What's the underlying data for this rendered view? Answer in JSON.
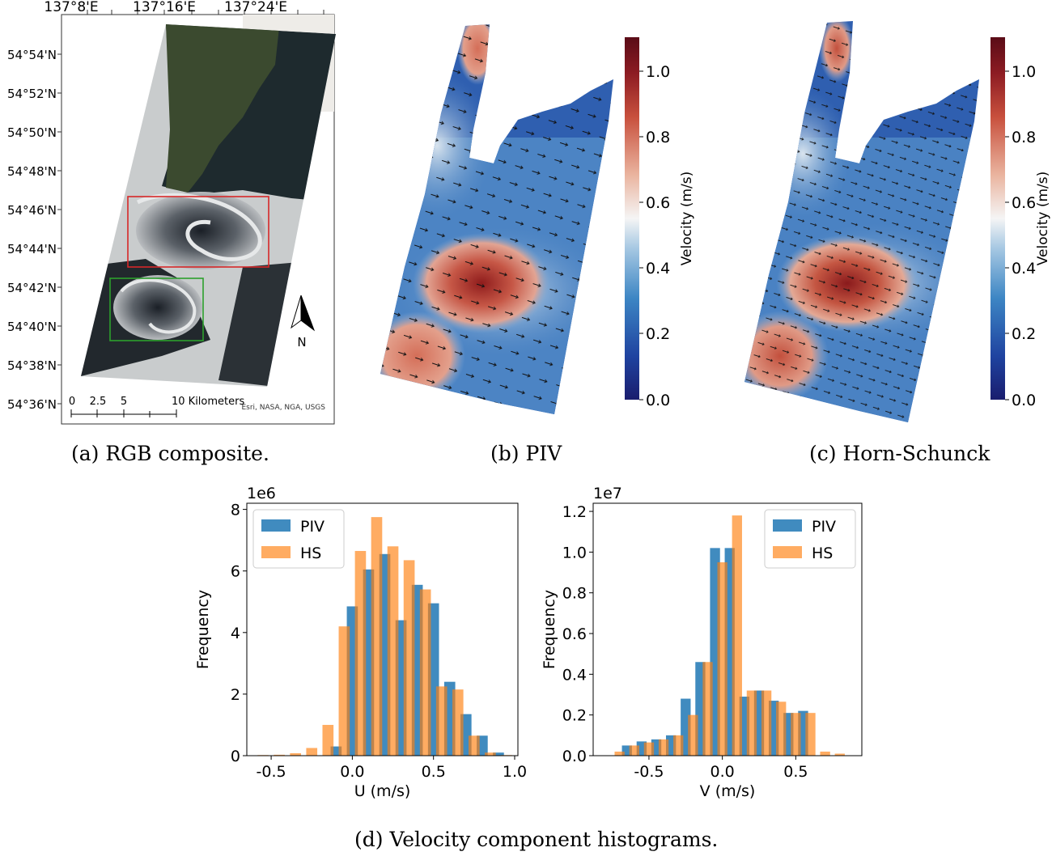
{
  "captions": {
    "a": "(a) RGB composite.",
    "b": "(b) PIV",
    "c": "(c) Horn-Schunck",
    "d": "(d) Velocity component histograms."
  },
  "map_a": {
    "lon_ticks": [
      "137°8'E",
      "137°16'E",
      "137°24'E"
    ],
    "lat_ticks": [
      "54°54'N",
      "54°52'N",
      "54°50'N",
      "54°48'N",
      "54°46'N",
      "54°44'N",
      "54°42'N",
      "54°40'N",
      "54°38'N",
      "54°36'N"
    ],
    "scale_labels": [
      "0",
      "2.5",
      "5",
      "10 Kilometers"
    ],
    "attribution": "Esri, NASA, NGA, USGS",
    "north_label": "N"
  },
  "colorbar": {
    "label": "Velocity (m/s)",
    "ticks": [
      "0.0",
      "0.2",
      "0.4",
      "0.6",
      "0.8",
      "1.0"
    ],
    "colors": {
      "low": "#1a1d6e",
      "mid": "#f5f5f5",
      "high": "#5a0c17"
    }
  },
  "chart_data": [
    {
      "type": "bar",
      "xlabel": "U (m/s)",
      "ylabel": "Frequency",
      "offset_text": "1e6",
      "xlim": [
        -0.65,
        1.02
      ],
      "ylim": [
        0,
        8.2
      ],
      "xticks": [
        "-0.5",
        "0.0",
        "0.5",
        "1.0"
      ],
      "xtick_values": [
        -0.5,
        0.0,
        0.5,
        1.0
      ],
      "yticks": [
        "0",
        "2",
        "4",
        "6",
        "8"
      ],
      "ytick_values": [
        0,
        2,
        4,
        6,
        8
      ],
      "legend_position": "upper-left",
      "series": [
        {
          "name": "PIV",
          "color": "#1f77b4",
          "x": [
            -0.5,
            -0.4,
            -0.3,
            -0.2,
            -0.1,
            0.0,
            0.1,
            0.2,
            0.3,
            0.4,
            0.5,
            0.6,
            0.7,
            0.8,
            0.9
          ],
          "values": [
            0.0,
            0.0,
            0.0,
            0.0,
            0.3,
            4.85,
            6.05,
            6.55,
            4.4,
            5.55,
            4.95,
            2.4,
            1.35,
            0.65,
            0.1
          ]
        },
        {
          "name": "HS",
          "color": "#ff7f0e",
          "x": [
            -0.55,
            -0.45,
            -0.35,
            -0.25,
            -0.15,
            -0.05,
            0.05,
            0.15,
            0.25,
            0.35,
            0.45,
            0.55,
            0.65,
            0.75,
            0.85,
            0.95
          ],
          "values": [
            0.02,
            0.03,
            0.08,
            0.25,
            1.0,
            4.2,
            6.65,
            7.75,
            6.8,
            6.35,
            5.4,
            2.25,
            2.15,
            0.65,
            0.1,
            0.02
          ]
        }
      ]
    },
    {
      "type": "bar",
      "xlabel": "V (m/s)",
      "ylabel": "Frequency",
      "offset_text": "1e7",
      "xlim": [
        -0.88,
        0.95
      ],
      "ylim": [
        0,
        1.24
      ],
      "xticks": [
        "-0.5",
        "0.0",
        "0.5"
      ],
      "xtick_values": [
        -0.5,
        0.0,
        0.5
      ],
      "yticks": [
        "0.0",
        "0.2",
        "0.4",
        "0.6",
        "0.8",
        "1.0",
        "1.2"
      ],
      "ytick_values": [
        0,
        0.2,
        0.4,
        0.6,
        0.8,
        1.0,
        1.2
      ],
      "legend_position": "upper-right",
      "series": [
        {
          "name": "PIV",
          "color": "#1f77b4",
          "x": [
            -0.65,
            -0.55,
            -0.45,
            -0.35,
            -0.25,
            -0.15,
            -0.05,
            0.05,
            0.15,
            0.25,
            0.35,
            0.45,
            0.55,
            0.65
          ],
          "values": [
            0.05,
            0.07,
            0.08,
            0.1,
            0.28,
            0.46,
            1.02,
            1.02,
            0.29,
            0.32,
            0.27,
            0.21,
            0.22,
            0.0
          ]
        },
        {
          "name": "HS",
          "color": "#ff7f0e",
          "x": [
            -0.7,
            -0.6,
            -0.5,
            -0.4,
            -0.3,
            -0.2,
            -0.1,
            0.0,
            0.1,
            0.2,
            0.3,
            0.4,
            0.5,
            0.6,
            0.7,
            0.8
          ],
          "values": [
            0.02,
            0.05,
            0.065,
            0.08,
            0.1,
            0.2,
            0.46,
            0.95,
            1.18,
            0.32,
            0.32,
            0.265,
            0.21,
            0.21,
            0.02,
            0.01
          ]
        }
      ]
    }
  ]
}
